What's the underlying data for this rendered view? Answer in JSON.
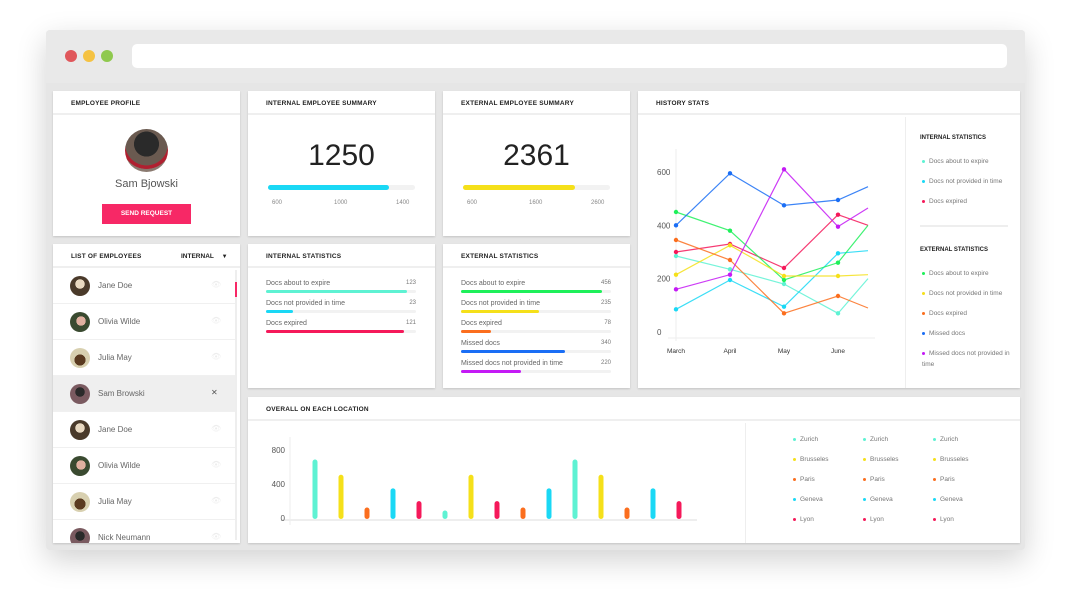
{
  "window": {
    "dots": [
      "#e0575b",
      "#f5c242",
      "#8fc94e"
    ]
  },
  "profile": {
    "title": "EMPLOYEE PROFILE",
    "name": "Sam Bjowski",
    "button": "SEND REQUEST",
    "accent": "#f72866"
  },
  "internal_summary": {
    "title": "INTERNAL EMPLOYEE SUMMARY",
    "value": "1250",
    "ticks": [
      "600",
      "1000",
      "1400"
    ],
    "progress_pct": 82,
    "color": "#1ad8f5"
  },
  "external_summary": {
    "title": "EXTERNAL EMPLOYEE SUMMARY",
    "value": "2361",
    "ticks": [
      "600",
      "1600",
      "2600"
    ],
    "progress_pct": 76,
    "color": "#f5e01a"
  },
  "employees": {
    "title": "LIST OF EMPLOYEES",
    "filter": "INTERNAL",
    "items": [
      {
        "name": "Jane Doe",
        "action": "eye-icon"
      },
      {
        "name": "Olivia Wilde",
        "action": "eye-icon"
      },
      {
        "name": "Julia May",
        "action": "eye-icon"
      },
      {
        "name": "Sam Browski",
        "action": "close-icon",
        "selected": true
      },
      {
        "name": "Jane Doe",
        "action": "eye-icon"
      },
      {
        "name": "Olivia Wilde",
        "action": "eye-icon"
      },
      {
        "name": "Julia May",
        "action": "eye-icon"
      },
      {
        "name": "Nick Neumann",
        "action": "eye-icon"
      }
    ]
  },
  "internal_stats": {
    "title": "INTERNAL STATISTICS",
    "rows": [
      {
        "label": "Docs about to expire",
        "value": "123",
        "pct": 94,
        "color": "#5ef2d3"
      },
      {
        "label": "Docs not provided in time",
        "value": "23",
        "pct": 18,
        "color": "#1ad8f5"
      },
      {
        "label": "Docs expired",
        "value": "121",
        "pct": 92,
        "color": "#f5195a"
      }
    ]
  },
  "external_stats": {
    "title": "EXTERNAL STATISTICS",
    "rows": [
      {
        "label": "Docs about to expire",
        "value": "456",
        "pct": 94,
        "color": "#1ef05a"
      },
      {
        "label": "Docs not provided in time",
        "value": "235",
        "pct": 52,
        "color": "#f5e01a"
      },
      {
        "label": "Docs expired",
        "value": "78",
        "pct": 20,
        "color": "#fb6e1e"
      },
      {
        "label": "Missed docs",
        "value": "340",
        "pct": 69,
        "color": "#1a6ef5"
      },
      {
        "label": "Missed docs not provided in time",
        "value": "220",
        "pct": 40,
        "color": "#c41af5"
      }
    ]
  },
  "history": {
    "title": "HISTORY STATS",
    "internal_title": "INTERNAL STATISTICS",
    "external_title": "EXTERNAL STATISTICS"
  },
  "chart_data": [
    {
      "type": "line",
      "x": [
        "March",
        "April",
        "May",
        "June",
        ""
      ],
      "ylim": [
        0,
        700
      ],
      "yticks": [
        "0",
        "200",
        "400",
        "600"
      ],
      "series": [
        {
          "name": "Docs about to expire",
          "group": "internal",
          "color": "#5ef2d3",
          "values": [
            285,
            235,
            180,
            70,
            200
          ]
        },
        {
          "name": "Docs not provided in time",
          "group": "internal",
          "color": "#1ad8f5",
          "values": [
            85,
            195,
            95,
            295,
            305
          ]
        },
        {
          "name": "Docs expired",
          "group": "internal",
          "color": "#f5195a",
          "values": [
            300,
            330,
            240,
            440,
            400
          ]
        },
        {
          "name": "Docs about to expire",
          "group": "external",
          "color": "#1ef05a",
          "values": [
            450,
            380,
            195,
            260,
            400
          ]
        },
        {
          "name": "Docs not provided in time",
          "group": "external",
          "color": "#f5e01a",
          "values": [
            215,
            325,
            210,
            210,
            215
          ]
        },
        {
          "name": "Docs expired",
          "group": "external",
          "color": "#fb6e1e",
          "values": [
            345,
            270,
            70,
            135,
            90
          ]
        },
        {
          "name": "Missed docs",
          "group": "external",
          "color": "#1a6ef5",
          "values": [
            400,
            595,
            475,
            495,
            545
          ]
        },
        {
          "name": "Missed docs not provided in time",
          "group": "external",
          "color": "#c41af5",
          "values": [
            160,
            215,
            610,
            395,
            465
          ]
        }
      ]
    },
    {
      "type": "bar",
      "title": "OVERALL ON EACH LOCATION",
      "ylim": [
        0,
        1000
      ],
      "yticks": [
        "0",
        "400",
        "800"
      ],
      "values": [
        700,
        520,
        135,
        360,
        210,
        100,
        520,
        210,
        135,
        360,
        700,
        520,
        135,
        360,
        210
      ],
      "colors": [
        "#5ef2d3",
        "#f5e01a",
        "#fb6e1e",
        "#1ad8f5",
        "#f5195a",
        "#5ef2d3",
        "#f5e01a",
        "#f5195a",
        "#fb6e1e",
        "#1ad8f5",
        "#5ef2d3",
        "#f5e01a",
        "#fb6e1e",
        "#1ad8f5",
        "#f5195a"
      ],
      "legend_columns": [
        [
          {
            "label": "Zurich",
            "color": "#5ef2d3"
          },
          {
            "label": "Brusseles",
            "color": "#f5e01a"
          },
          {
            "label": "Paris",
            "color": "#fb6e1e"
          },
          {
            "label": "Geneva",
            "color": "#1ad8f5"
          },
          {
            "label": "Lyon",
            "color": "#f5195a"
          }
        ],
        [
          {
            "label": "Zurich",
            "color": "#5ef2d3"
          },
          {
            "label": "Brusseles",
            "color": "#f5e01a"
          },
          {
            "label": "Paris",
            "color": "#fb6e1e"
          },
          {
            "label": "Geneva",
            "color": "#1ad8f5"
          },
          {
            "label": "Lyon",
            "color": "#f5195a"
          }
        ],
        [
          {
            "label": "Zurich",
            "color": "#5ef2d3"
          },
          {
            "label": "Brusseles",
            "color": "#f5e01a"
          },
          {
            "label": "Paris",
            "color": "#fb6e1e"
          },
          {
            "label": "Geneva",
            "color": "#1ad8f5"
          },
          {
            "label": "Lyon",
            "color": "#f5195a"
          }
        ]
      ]
    }
  ]
}
